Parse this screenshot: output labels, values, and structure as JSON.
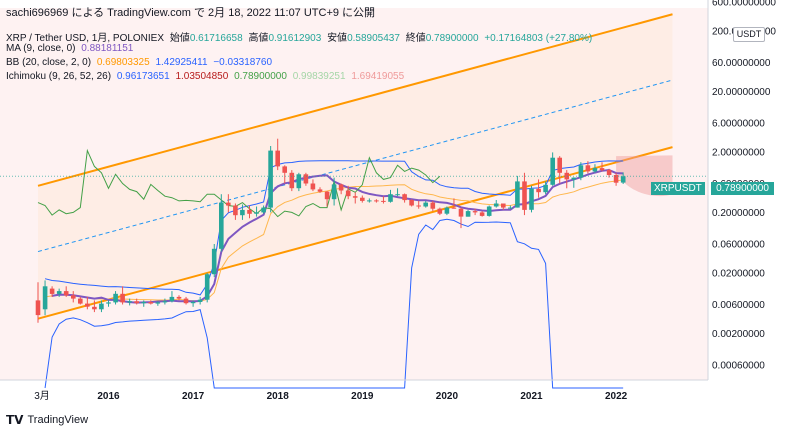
{
  "caption": "sachi696969 による TradingView.com で 2月 18, 2022 11:07 UTC+9 に公開",
  "brand": "TradingView",
  "brand_icon": "tradingview-logo-icon",
  "legend": {
    "title": {
      "symbol": "XRP / Tether USD, 1月, POLONIEX",
      "open_label": "始値",
      "open": "0.61716658",
      "high_label": "高値",
      "high": "0.91612903",
      "low_label": "安値",
      "low": "0.58905437",
      "close_label": "終値",
      "close": "0.78900000",
      "change": "+0.17164803 (+27.80%)"
    },
    "ma": {
      "label": "MA (9, close, 0)",
      "value": "0.88181151"
    },
    "bb": {
      "label": "BB (20, close, 2, 0)",
      "basis": "0.69803325",
      "upper": "1.42925411",
      "lower": "−0.03318760"
    },
    "ichimoku": {
      "label": "Ichimoku (9, 26, 52, 26)",
      "v1": "0.96173651",
      "v2": "1.03504850",
      "v3": "0.78900000",
      "v4": "0.99839251",
      "v5": "1.69419055"
    }
  },
  "price_axis": {
    "unit": "USDT",
    "ticks": [
      "600.00000000",
      "200.00000000",
      "60.00000000",
      "20.00000000",
      "6.00000000",
      "2.00000000",
      "0.60000000",
      "0.20000000",
      "0.06000000",
      "0.02000000",
      "0.00600000",
      "0.00200000",
      "0.00060000"
    ]
  },
  "current_price": {
    "symbol": "XRPUSDT",
    "value": "0.78900000"
  },
  "time_axis": {
    "ticks": [
      "3月",
      "2016",
      "2017",
      "2018",
      "2019",
      "2020",
      "2021",
      "2022"
    ]
  },
  "colors": {
    "up": "#26a69a",
    "down": "#ef5350",
    "ma": "#7e57c2",
    "bb_basis": "#ffb74d",
    "bb_band": "#2962ff",
    "ichimoku_conversion": "#2962ff",
    "ichimoku_base": "#b71c1c",
    "ichimoku_lagging": "#43a047",
    "channel": "#ff9800",
    "midline": "#2196f3",
    "cloud": "#ef9a9a"
  },
  "chart_data": {
    "type": "candlestick",
    "title": "XRP / Tether USD, 1月, POLONIEX",
    "scale": "log",
    "ylim": [
      0.0003,
      650
    ],
    "grid": false,
    "candles": [
      {
        "t": "2015-03",
        "o": 0.007,
        "h": 0.014,
        "l": 0.003,
        "c": 0.004
      },
      {
        "t": "2015-04",
        "o": 0.005,
        "h": 0.015,
        "l": 0.004,
        "c": 0.012
      },
      {
        "t": "2015-05",
        "o": 0.011,
        "h": 0.012,
        "l": 0.008,
        "c": 0.009
      },
      {
        "t": "2015-06",
        "o": 0.009,
        "h": 0.011,
        "l": 0.008,
        "c": 0.01
      },
      {
        "t": "2015-07",
        "o": 0.01,
        "h": 0.012,
        "l": 0.008,
        "c": 0.0085
      },
      {
        "t": "2015-08",
        "o": 0.0085,
        "h": 0.01,
        "l": 0.0065,
        "c": 0.0075
      },
      {
        "t": "2015-09",
        "o": 0.0075,
        "h": 0.008,
        "l": 0.006,
        "c": 0.0062
      },
      {
        "t": "2015-10",
        "o": 0.0062,
        "h": 0.008,
        "l": 0.005,
        "c": 0.0055
      },
      {
        "t": "2015-11",
        "o": 0.0055,
        "h": 0.007,
        "l": 0.0045,
        "c": 0.005
      },
      {
        "t": "2015-12",
        "o": 0.005,
        "h": 0.007,
        "l": 0.0045,
        "c": 0.0062
      },
      {
        "t": "2016-01",
        "o": 0.0062,
        "h": 0.007,
        "l": 0.0055,
        "c": 0.0065
      },
      {
        "t": "2016-02",
        "o": 0.0065,
        "h": 0.01,
        "l": 0.006,
        "c": 0.009
      },
      {
        "t": "2016-03",
        "o": 0.009,
        "h": 0.012,
        "l": 0.006,
        "c": 0.0065
      },
      {
        "t": "2016-04",
        "o": 0.0065,
        "h": 0.0075,
        "l": 0.0058,
        "c": 0.0068
      },
      {
        "t": "2016-05",
        "o": 0.0068,
        "h": 0.0075,
        "l": 0.006,
        "c": 0.0063
      },
      {
        "t": "2016-06",
        "o": 0.0063,
        "h": 0.007,
        "l": 0.0055,
        "c": 0.0066
      },
      {
        "t": "2016-07",
        "o": 0.0066,
        "h": 0.007,
        "l": 0.006,
        "c": 0.0062
      },
      {
        "t": "2016-08",
        "o": 0.0062,
        "h": 0.0068,
        "l": 0.0057,
        "c": 0.0065
      },
      {
        "t": "2016-09",
        "o": 0.0065,
        "h": 0.0075,
        "l": 0.006,
        "c": 0.0068
      },
      {
        "t": "2016-10",
        "o": 0.0068,
        "h": 0.01,
        "l": 0.0065,
        "c": 0.008
      },
      {
        "t": "2016-11",
        "o": 0.008,
        "h": 0.0085,
        "l": 0.007,
        "c": 0.0075
      },
      {
        "t": "2016-12",
        "o": 0.0075,
        "h": 0.008,
        "l": 0.006,
        "c": 0.0063
      },
      {
        "t": "2017-01",
        "o": 0.0063,
        "h": 0.007,
        "l": 0.0055,
        "c": 0.0066
      },
      {
        "t": "2017-02",
        "o": 0.0066,
        "h": 0.008,
        "l": 0.006,
        "c": 0.0072
      },
      {
        "t": "2017-03",
        "o": 0.0072,
        "h": 0.02,
        "l": 0.0065,
        "c": 0.019
      },
      {
        "t": "2017-04",
        "o": 0.019,
        "h": 0.06,
        "l": 0.017,
        "c": 0.05
      },
      {
        "t": "2017-05",
        "o": 0.05,
        "h": 0.4,
        "l": 0.045,
        "c": 0.29
      },
      {
        "t": "2017-06",
        "o": 0.29,
        "h": 0.4,
        "l": 0.2,
        "c": 0.26
      },
      {
        "t": "2017-07",
        "o": 0.26,
        "h": 0.28,
        "l": 0.15,
        "c": 0.18
      },
      {
        "t": "2017-08",
        "o": 0.18,
        "h": 0.27,
        "l": 0.15,
        "c": 0.22
      },
      {
        "t": "2017-09",
        "o": 0.22,
        "h": 0.26,
        "l": 0.16,
        "c": 0.19
      },
      {
        "t": "2017-10",
        "o": 0.19,
        "h": 0.25,
        "l": 0.17,
        "c": 0.2
      },
      {
        "t": "2017-11",
        "o": 0.2,
        "h": 0.26,
        "l": 0.19,
        "c": 0.24
      },
      {
        "t": "2017-12",
        "o": 0.24,
        "h": 2.5,
        "l": 0.2,
        "c": 2.1
      },
      {
        "t": "2018-01",
        "o": 2.1,
        "h": 3.3,
        "l": 1.0,
        "c": 1.15
      },
      {
        "t": "2018-02",
        "o": 1.15,
        "h": 1.2,
        "l": 0.6,
        "c": 0.9
      },
      {
        "t": "2018-03",
        "o": 0.9,
        "h": 1.0,
        "l": 0.45,
        "c": 0.5
      },
      {
        "t": "2018-04",
        "o": 0.5,
        "h": 0.9,
        "l": 0.45,
        "c": 0.85
      },
      {
        "t": "2018-05",
        "o": 0.85,
        "h": 0.9,
        "l": 0.55,
        "c": 0.6
      },
      {
        "t": "2018-06",
        "o": 0.6,
        "h": 0.7,
        "l": 0.45,
        "c": 0.48
      },
      {
        "t": "2018-07",
        "o": 0.48,
        "h": 0.52,
        "l": 0.42,
        "c": 0.44
      },
      {
        "t": "2018-08",
        "o": 0.44,
        "h": 0.45,
        "l": 0.25,
        "c": 0.33
      },
      {
        "t": "2018-09",
        "o": 0.33,
        "h": 0.75,
        "l": 0.26,
        "c": 0.58
      },
      {
        "t": "2018-10",
        "o": 0.58,
        "h": 0.6,
        "l": 0.4,
        "c": 0.46
      },
      {
        "t": "2018-11",
        "o": 0.46,
        "h": 0.55,
        "l": 0.33,
        "c": 0.37
      },
      {
        "t": "2018-12",
        "o": 0.37,
        "h": 0.43,
        "l": 0.28,
        "c": 0.35
      },
      {
        "t": "2019-01",
        "o": 0.35,
        "h": 0.38,
        "l": 0.29,
        "c": 0.31
      },
      {
        "t": "2019-02",
        "o": 0.31,
        "h": 0.34,
        "l": 0.29,
        "c": 0.315
      },
      {
        "t": "2019-03",
        "o": 0.315,
        "h": 0.33,
        "l": 0.29,
        "c": 0.31
      },
      {
        "t": "2019-04",
        "o": 0.31,
        "h": 0.37,
        "l": 0.28,
        "c": 0.3
      },
      {
        "t": "2019-05",
        "o": 0.3,
        "h": 0.47,
        "l": 0.29,
        "c": 0.4
      },
      {
        "t": "2019-06",
        "o": 0.4,
        "h": 0.5,
        "l": 0.37,
        "c": 0.4
      },
      {
        "t": "2019-07",
        "o": 0.4,
        "h": 0.41,
        "l": 0.29,
        "c": 0.32
      },
      {
        "t": "2019-08",
        "o": 0.32,
        "h": 0.33,
        "l": 0.25,
        "c": 0.26
      },
      {
        "t": "2019-09",
        "o": 0.26,
        "h": 0.31,
        "l": 0.23,
        "c": 0.25
      },
      {
        "t": "2019-10",
        "o": 0.25,
        "h": 0.31,
        "l": 0.24,
        "c": 0.29
      },
      {
        "t": "2019-11",
        "o": 0.29,
        "h": 0.31,
        "l": 0.21,
        "c": 0.23
      },
      {
        "t": "2019-12",
        "o": 0.23,
        "h": 0.24,
        "l": 0.18,
        "c": 0.19
      },
      {
        "t": "2020-01",
        "o": 0.19,
        "h": 0.25,
        "l": 0.18,
        "c": 0.24
      },
      {
        "t": "2020-02",
        "o": 0.24,
        "h": 0.34,
        "l": 0.23,
        "c": 0.23
      },
      {
        "t": "2020-03",
        "o": 0.23,
        "h": 0.24,
        "l": 0.11,
        "c": 0.17
      },
      {
        "t": "2020-04",
        "o": 0.17,
        "h": 0.22,
        "l": 0.17,
        "c": 0.21
      },
      {
        "t": "2020-05",
        "o": 0.21,
        "h": 0.23,
        "l": 0.18,
        "c": 0.2
      },
      {
        "t": "2020-06",
        "o": 0.2,
        "h": 0.21,
        "l": 0.17,
        "c": 0.175
      },
      {
        "t": "2020-07",
        "o": 0.175,
        "h": 0.26,
        "l": 0.17,
        "c": 0.25
      },
      {
        "t": "2020-08",
        "o": 0.25,
        "h": 0.32,
        "l": 0.24,
        "c": 0.28
      },
      {
        "t": "2020-09",
        "o": 0.28,
        "h": 0.28,
        "l": 0.22,
        "c": 0.24
      },
      {
        "t": "2020-10",
        "o": 0.24,
        "h": 0.26,
        "l": 0.23,
        "c": 0.24
      },
      {
        "t": "2020-11",
        "o": 0.24,
        "h": 0.8,
        "l": 0.24,
        "c": 0.65
      },
      {
        "t": "2020-12",
        "o": 0.65,
        "h": 0.9,
        "l": 0.18,
        "c": 0.22
      },
      {
        "t": "2021-01",
        "o": 0.22,
        "h": 0.55,
        "l": 0.2,
        "c": 0.49
      },
      {
        "t": "2021-02",
        "o": 0.49,
        "h": 0.7,
        "l": 0.35,
        "c": 0.43
      },
      {
        "t": "2021-03",
        "o": 0.43,
        "h": 0.65,
        "l": 0.4,
        "c": 0.57
      },
      {
        "t": "2021-04",
        "o": 0.57,
        "h": 1.96,
        "l": 0.55,
        "c": 1.6
      },
      {
        "t": "2021-05",
        "o": 1.6,
        "h": 1.7,
        "l": 0.6,
        "c": 0.9
      },
      {
        "t": "2021-06",
        "o": 0.9,
        "h": 1.0,
        "l": 0.5,
        "c": 0.7
      },
      {
        "t": "2021-07",
        "o": 0.7,
        "h": 0.76,
        "l": 0.51,
        "c": 0.75
      },
      {
        "t": "2021-08",
        "o": 0.75,
        "h": 1.35,
        "l": 0.68,
        "c": 1.2
      },
      {
        "t": "2021-09",
        "o": 1.2,
        "h": 1.4,
        "l": 0.88,
        "c": 0.95
      },
      {
        "t": "2021-10",
        "o": 0.95,
        "h": 1.25,
        "l": 0.9,
        "c": 1.08
      },
      {
        "t": "2021-11",
        "o": 1.08,
        "h": 1.35,
        "l": 0.95,
        "c": 1.0
      },
      {
        "t": "2021-12",
        "o": 1.0,
        "h": 1.05,
        "l": 0.75,
        "c": 0.83
      },
      {
        "t": "2022-01",
        "o": 0.83,
        "h": 0.9,
        "l": 0.55,
        "c": 0.62
      },
      {
        "t": "2022-02",
        "o": 0.62,
        "h": 0.916,
        "l": 0.589,
        "c": 0.789
      }
    ]
  }
}
